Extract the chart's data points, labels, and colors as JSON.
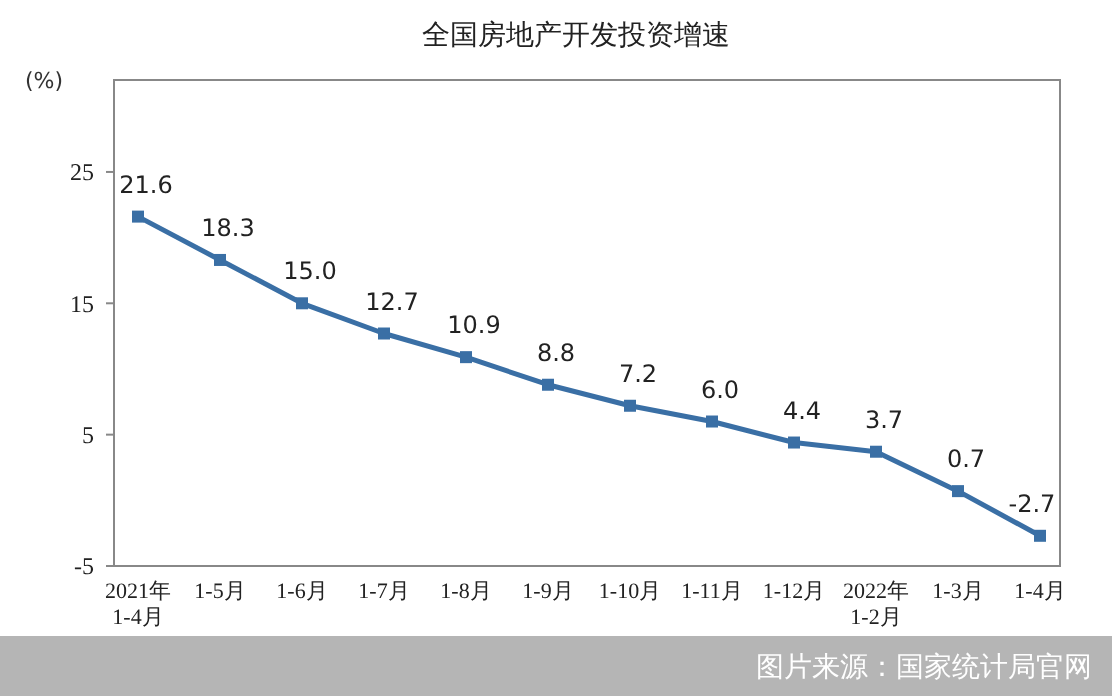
{
  "chart_data": {
    "type": "line",
    "title": "全国房地产开发投资增速",
    "ylabel": "(%)",
    "categories": [
      "2021年\n1-4月",
      "1-5月",
      "1-6月",
      "1-7月",
      "1-8月",
      "1-9月",
      "1-10月",
      "1-11月",
      "1-12月",
      "2022年\n1-2月",
      "1-3月",
      "1-4月"
    ],
    "series": [
      {
        "color": "#3a6fa5",
        "values": [
          21.6,
          18.3,
          15.0,
          12.7,
          10.9,
          8.8,
          7.2,
          6.0,
          4.4,
          3.7,
          0.7,
          -2.7
        ],
        "value_labels": [
          "21.6",
          "18.3",
          "15.0",
          "12.7",
          "10.9",
          "8.8",
          "7.2",
          "6.0",
          "4.4",
          "3.7",
          "0.7",
          "-2.7"
        ]
      }
    ],
    "ylim": [
      -5,
      32
    ],
    "yticks": [
      -5,
      5,
      15,
      25
    ],
    "marker": "square",
    "line_style": "solid",
    "annotations": [
      "图片来源：国家统计局官网"
    ]
  }
}
